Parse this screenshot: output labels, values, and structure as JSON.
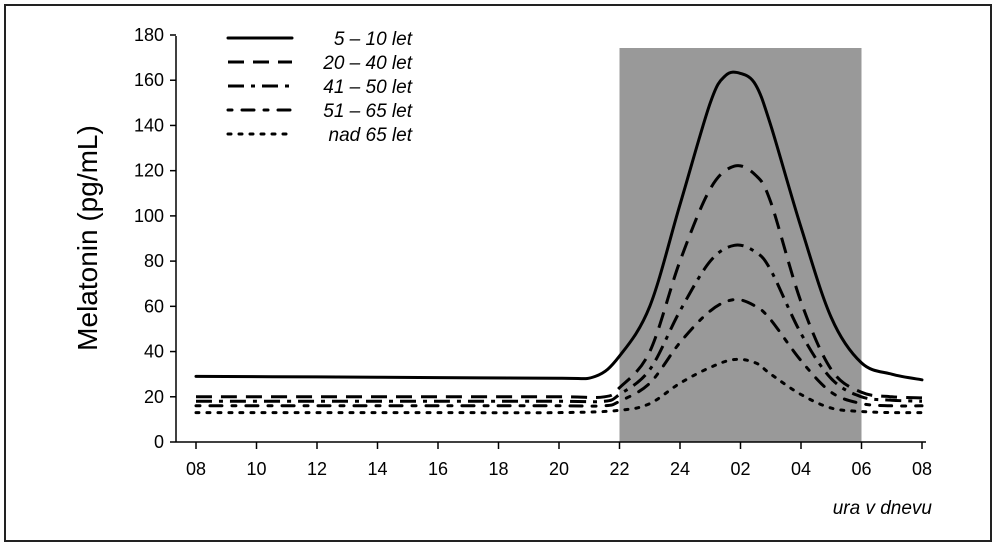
{
  "chart_data": {
    "type": "line",
    "ylabel": "Melatonin (pg/mL)",
    "xlabel": "ura v dnevu",
    "ylim": [
      0,
      180
    ],
    "yticks": [
      0,
      20,
      40,
      60,
      80,
      100,
      120,
      140,
      160,
      180
    ],
    "x_tick_labels": [
      "08",
      "10",
      "12",
      "14",
      "16",
      "18",
      "20",
      "22",
      "24",
      "02",
      "04",
      "06",
      "08"
    ],
    "shaded_region": {
      "from_hour": 22,
      "to_hour": 30,
      "color": "#999999"
    },
    "legend_position": "top-left",
    "grid": false,
    "series": [
      {
        "name": "5 – 10 let",
        "dash": "solid",
        "x": [
          8,
          12,
          16,
          20,
          21.2,
          22,
          23,
          24,
          25,
          25.5,
          26,
          26.5,
          27,
          28,
          29,
          30,
          31,
          32
        ],
        "y": [
          29,
          28.8,
          28.5,
          28.2,
          29,
          38,
          60,
          105,
          150,
          162,
          163,
          158,
          140,
          95,
          55,
          35,
          30,
          27.5
        ]
      },
      {
        "name": "20 – 40 let",
        "dash": "dash",
        "x": [
          8,
          12,
          16,
          20,
          21.5,
          22,
          23,
          24,
          25,
          25.8,
          26.5,
          27,
          28,
          29,
          30,
          31,
          32
        ],
        "y": [
          20,
          20,
          20,
          20,
          20,
          24,
          40,
          80,
          112,
          122,
          118,
          106,
          62,
          32,
          22,
          20,
          19.5
        ]
      },
      {
        "name": "41 – 50 let",
        "dash": "dashdot",
        "x": [
          8,
          12,
          16,
          20,
          21.5,
          22,
          23,
          24,
          25,
          25.8,
          26.5,
          27,
          28,
          29,
          30,
          31,
          32
        ],
        "y": [
          18,
          18,
          18,
          18,
          18,
          21,
          32,
          58,
          80,
          87,
          84,
          76,
          48,
          28,
          20,
          18.5,
          18
        ]
      },
      {
        "name": "51 – 65 let",
        "dash": "dotdash",
        "x": [
          8,
          12,
          16,
          20,
          21.5,
          22,
          23,
          24,
          25,
          25.8,
          26.5,
          27,
          28,
          29,
          30,
          31,
          32
        ],
        "y": [
          16,
          16,
          16,
          16,
          16,
          18,
          26,
          44,
          58,
          63,
          60,
          54,
          36,
          22,
          17,
          16,
          16
        ]
      },
      {
        "name": "nad 65 let",
        "dash": "dotted",
        "x": [
          8,
          12,
          16,
          20,
          22,
          23,
          24,
          25,
          25.8,
          26.5,
          27,
          28,
          29,
          30,
          31,
          32
        ],
        "y": [
          13,
          13,
          13,
          13,
          14,
          17,
          26,
          33,
          36.5,
          35,
          30,
          21,
          15,
          13.5,
          13,
          13
        ]
      }
    ]
  }
}
